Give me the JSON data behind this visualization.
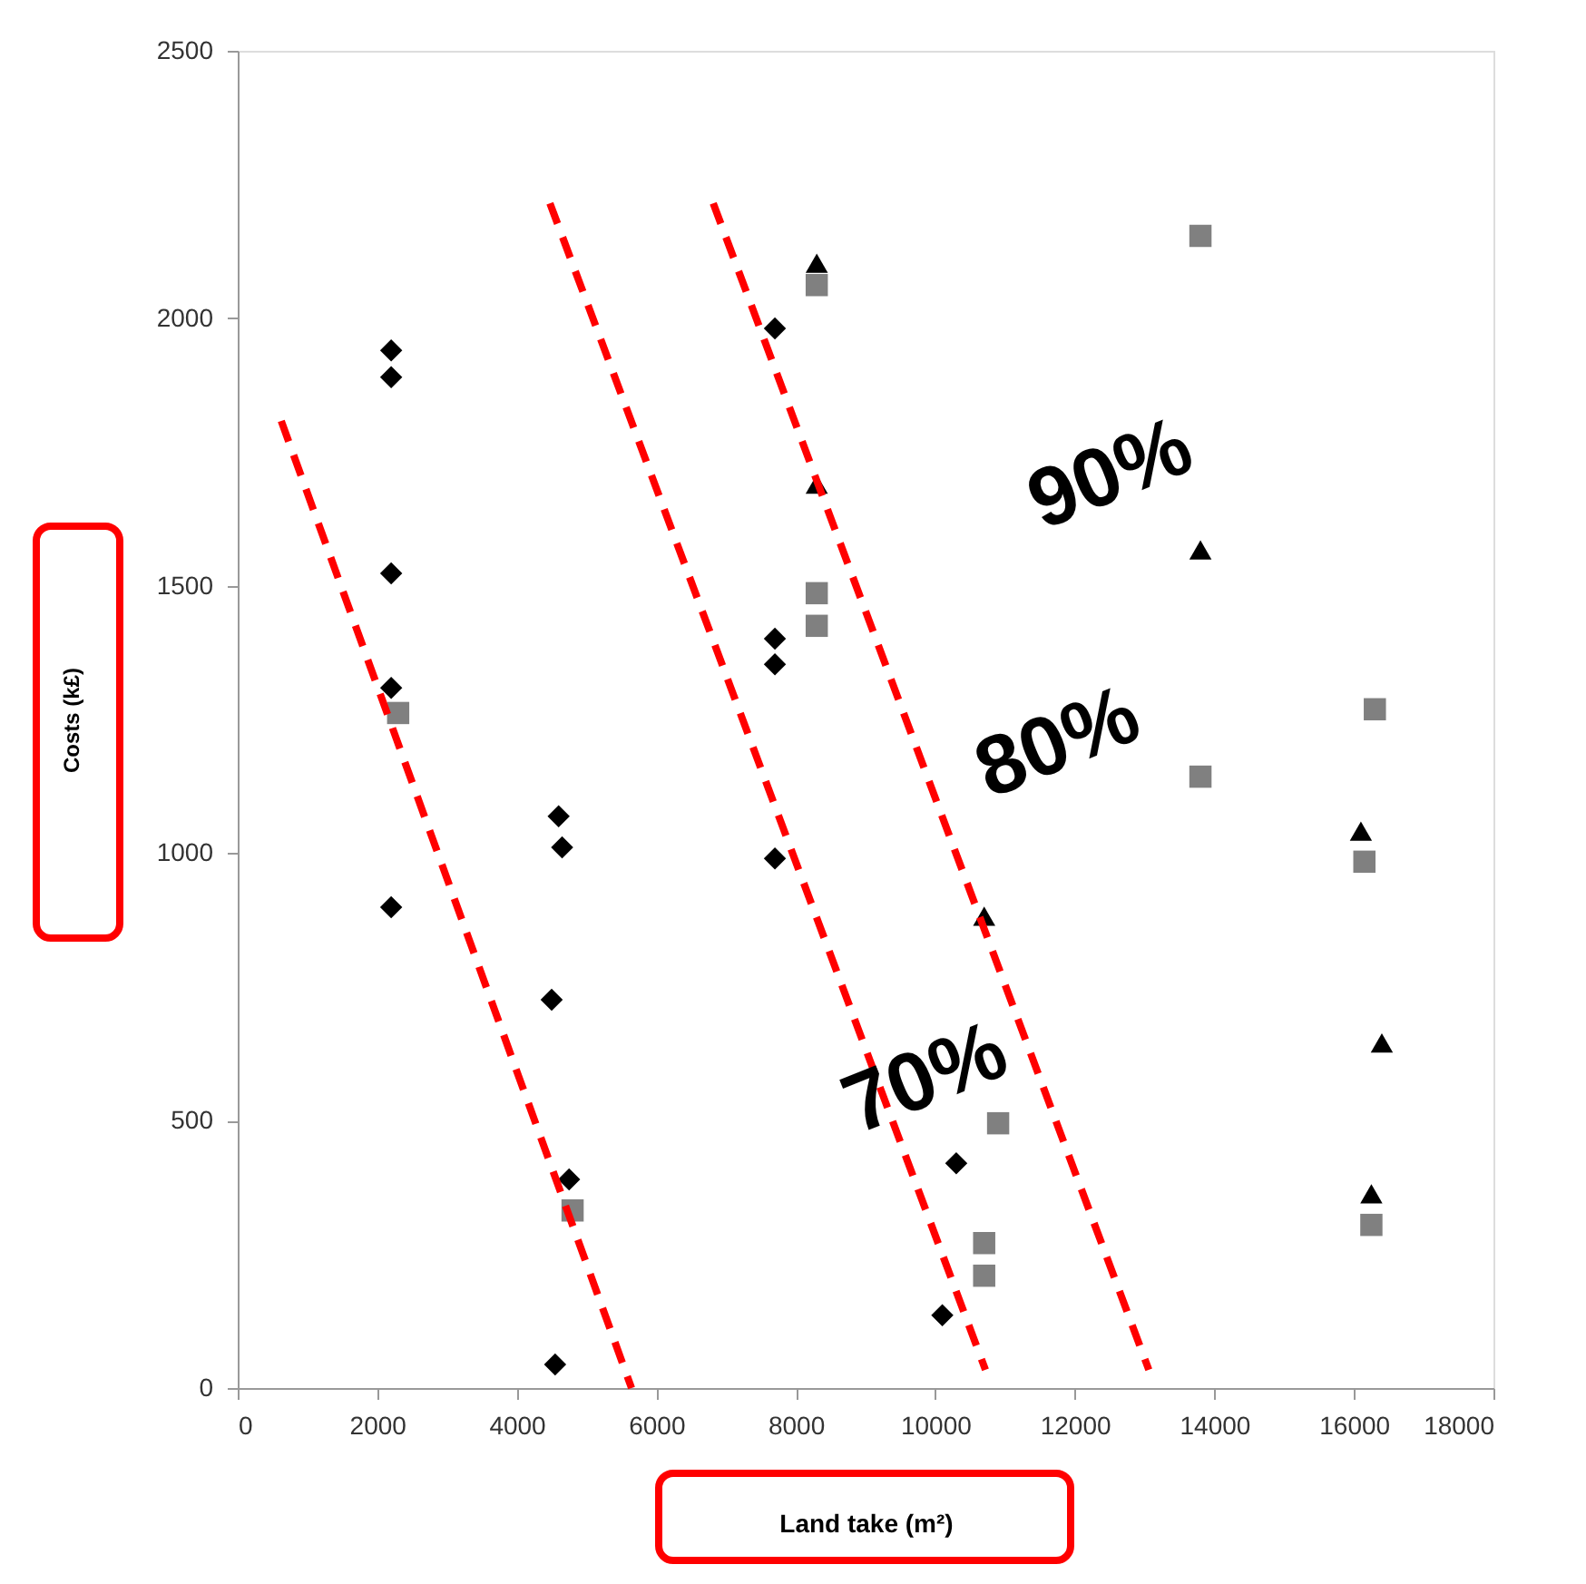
{
  "chart_data": {
    "type": "scatter",
    "xlabel": "Land take (m²)",
    "ylabel": "Costs  (k£)",
    "xlim": [
      0,
      18000
    ],
    "xticks": [
      0,
      2000,
      4000,
      6000,
      8000,
      10000,
      12000,
      14000,
      16000,
      18000
    ],
    "ylim": [
      0,
      2500
    ],
    "yticks": [
      0,
      500,
      1000,
      1500,
      2000,
      2500
    ],
    "series": [
      {
        "marker": "diamond",
        "color": "#000000",
        "x": [
          2200,
          2200,
          2200,
          2200,
          2200,
          4600,
          4650,
          4500,
          4750,
          4550,
          7700,
          7700,
          7700,
          7700,
          10300,
          10100
        ],
        "values": [
          1940,
          1890,
          1523,
          1309,
          899,
          1069,
          1011,
          726,
          390,
          44,
          1981,
          1401,
          1353,
          990,
          420,
          136
        ]
      },
      {
        "marker": "square",
        "color": "#808080",
        "x": [
          8300,
          8300,
          8300,
          13800,
          13800,
          16300,
          16150,
          16250,
          10700,
          10700,
          10900,
          2300,
          4800
        ],
        "values": [
          2062,
          1486,
          1425,
          2154,
          1143,
          1269,
          984,
          305,
          271,
          210,
          495,
          1262,
          332
        ]
      },
      {
        "marker": "triangle",
        "color": "#000000",
        "x": [
          8300,
          8300,
          13800,
          16100,
          16400,
          16250,
          10700
        ],
        "values": [
          2103,
          1690,
          1567,
          1041,
          645,
          363,
          882
        ]
      },
      {
        "type": "line",
        "line_style": "dashed",
        "color": "#ff0000",
        "x": [
          624,
          5645
        ],
        "values": [
          1808,
          0
        ]
      },
      {
        "type": "line",
        "line_style": "dashed",
        "color": "#ff0000",
        "x": [
          4475,
          10718
        ],
        "values": [
          2215,
          34
        ]
      },
      {
        "type": "line",
        "line_style": "dashed",
        "color": "#ff0000",
        "x": [
          6816,
          13060
        ],
        "values": [
          2215,
          34
        ]
      }
    ],
    "annotations": [
      "90%",
      "80%",
      "70%"
    ]
  }
}
